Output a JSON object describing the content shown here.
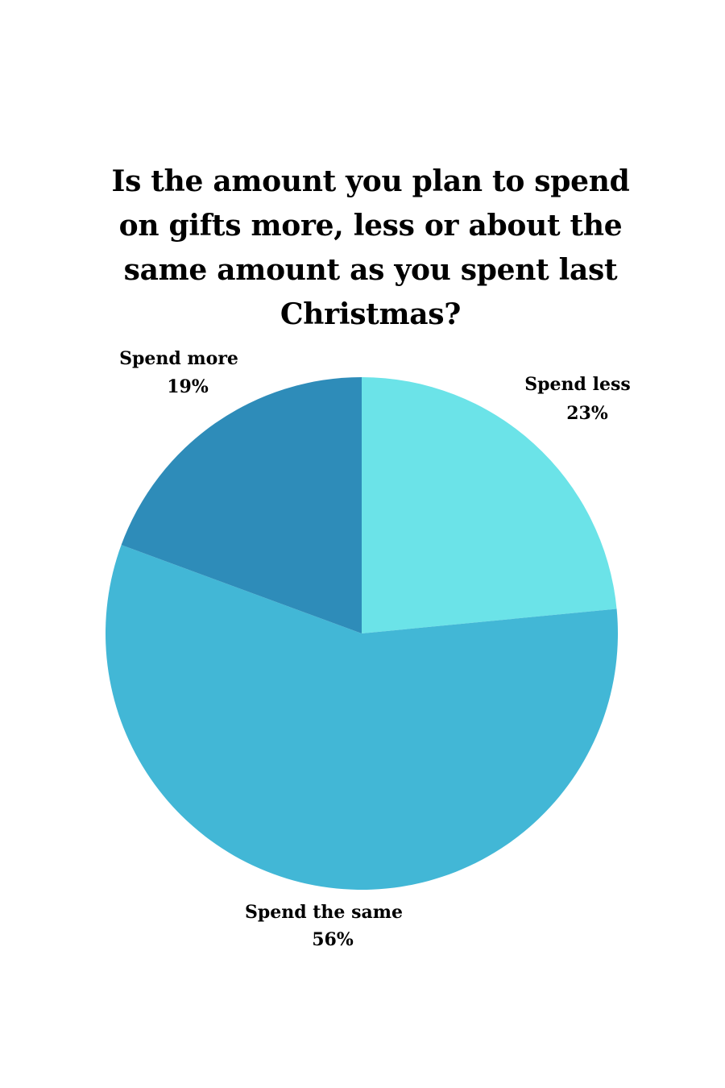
{
  "chart_data": {
    "type": "pie",
    "title": "Is the amount you plan to spend on gifts more, less or about the same amount as you spent last Christmas?",
    "slices": [
      {
        "name": "Spend less",
        "value": 23,
        "value_label": "23%",
        "color": "#6be3e8"
      },
      {
        "name": "Spend the same",
        "value": 56,
        "value_label": "56%",
        "color": "#42b7d6"
      },
      {
        "name": "Spend more",
        "value": 19,
        "value_label": "19%",
        "color": "#2e8cb9"
      }
    ],
    "start_angle": "12 o'clock",
    "direction": "clockwise"
  }
}
